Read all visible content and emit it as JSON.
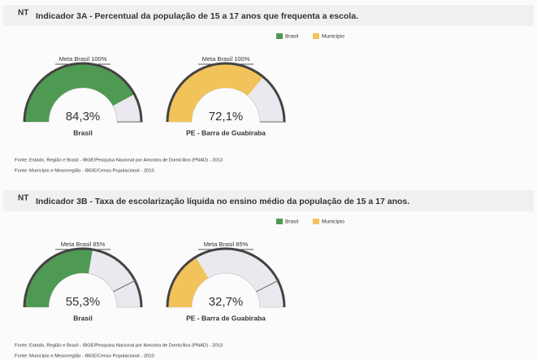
{
  "chart_data": [
    {
      "type": "gauge",
      "badge": "NT",
      "title": "Indicador 3A - Percentual da população de 15 a 17 anos que frequenta a escola.",
      "series": [
        {
          "name": "Brasil",
          "color": "#4f9a52"
        },
        {
          "name": "Município",
          "color": "#f2c35a"
        }
      ],
      "ylim": [
        0,
        100
      ],
      "names": [
        "Brasil",
        "PE - Barra de Guabiraba"
      ],
      "values": [
        84.3,
        72.1
      ],
      "value_labels": [
        "84,3%",
        "72,1%"
      ],
      "targets": [
        100,
        100
      ],
      "target_labels": [
        "Meta Brasil 100%",
        "Meta Brasil 100%"
      ],
      "colors": [
        "#4f9a52",
        "#f2c35a"
      ],
      "sources": [
        "Fonte: Estado, Região e Brasil - IBGE/Pesquisa Nacional por Amostra de Domicílios (PNAD) - 2013",
        "Fonte: Município e Mesorregião - IBGE/Censo Populacional - 2010"
      ]
    },
    {
      "type": "gauge",
      "badge": "NT",
      "title": "Indicador 3B - Taxa de escolarização líquida no ensino médio da população de 15 a 17 anos.",
      "series": [
        {
          "name": "Brasil",
          "color": "#4f9a52"
        },
        {
          "name": "Município",
          "color": "#f2c35a"
        }
      ],
      "ylim": [
        0,
        100
      ],
      "names": [
        "Brasil",
        "PE - Barra de Guabiraba"
      ],
      "values": [
        55.3,
        32.7
      ],
      "value_labels": [
        "55,3%",
        "32,7%"
      ],
      "targets": [
        85,
        85
      ],
      "target_labels": [
        "Meta Brasil 85%",
        "Meta Brasil 85%"
      ],
      "colors": [
        "#4f9a52",
        "#f2c35a"
      ],
      "sources": [
        "Fonte: Estado, Região e Brasil - IBGE/Pesquisa Nacional por Amostra de Domicílios (PNAD) - 2013",
        "Fonte: Município e Mesorregião - IBGE/Censo Populacional - 2010"
      ]
    }
  ]
}
